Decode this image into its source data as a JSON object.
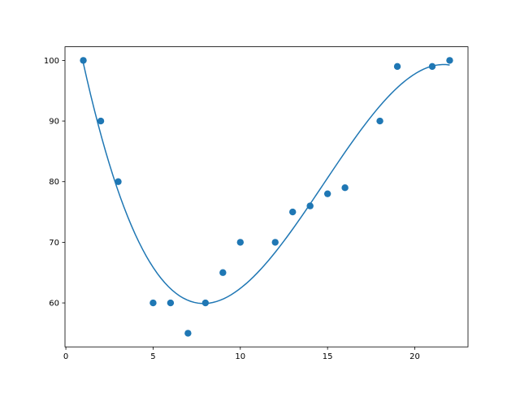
{
  "chart_data": {
    "type": "scatter",
    "title": "",
    "xlabel": "",
    "ylabel": "",
    "x": [
      1,
      2,
      3,
      5,
      6,
      7,
      8,
      9,
      10,
      12,
      13,
      14,
      15,
      16,
      18,
      19,
      21,
      22
    ],
    "y": [
      100,
      90,
      80,
      60,
      60,
      55,
      60,
      65,
      70,
      70,
      75,
      76,
      78,
      79,
      90,
      99,
      99,
      100
    ],
    "fit": {
      "type": "line",
      "model": "polynomial",
      "degree": 3,
      "x_range": [
        1,
        22
      ]
    },
    "xlim": [
      -0.05,
      23.05
    ],
    "ylim": [
      52.75,
      102.25
    ],
    "xticks": [
      "0",
      "5",
      "10",
      "15",
      "20"
    ],
    "yticks": [
      "60",
      "70",
      "80",
      "90",
      "100"
    ],
    "grid": false,
    "colors": {
      "points": "#1f77b4",
      "line": "#1f77b4"
    }
  }
}
